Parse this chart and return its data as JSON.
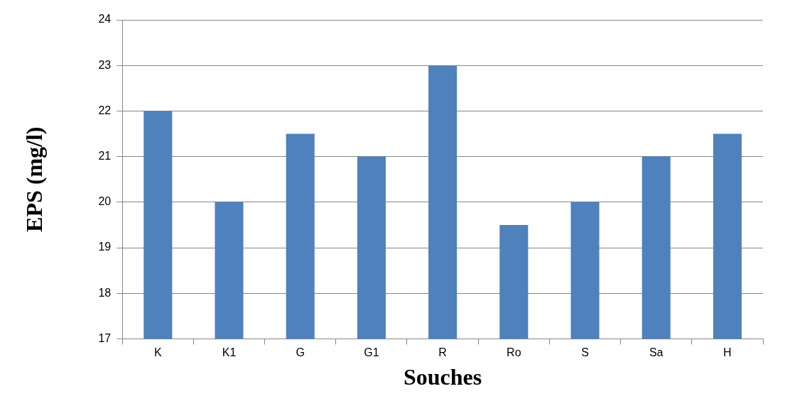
{
  "chart_data": {
    "type": "bar",
    "xlabel": "Souches",
    "ylabel": "EPS (mg/l)",
    "categories": [
      "K",
      "K1",
      "G",
      "G1",
      "R",
      "Ro",
      "S",
      "Sa",
      "H"
    ],
    "values": [
      22,
      20,
      21.5,
      21,
      23,
      19.5,
      20,
      21,
      21.5
    ],
    "color": "#4f81bd",
    "ylim": [
      17,
      24
    ],
    "yticks": [
      17,
      18,
      19,
      20,
      21,
      22,
      23,
      24
    ],
    "grid": "y"
  }
}
